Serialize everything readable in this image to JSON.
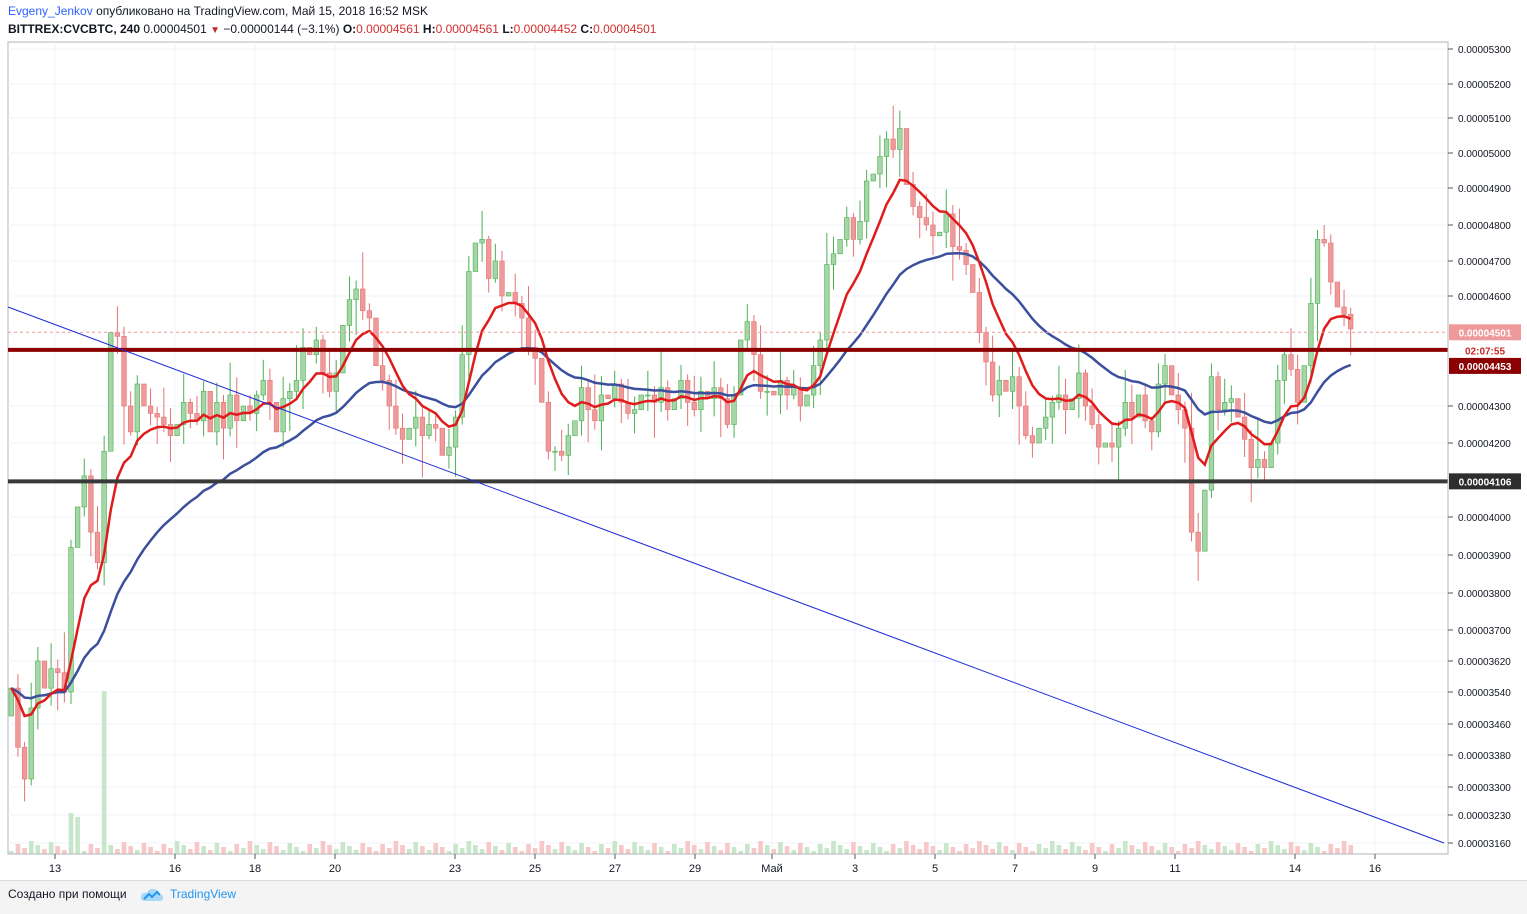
{
  "header": {
    "author": "Evgeny_Jenkov",
    "published": "опубликовано на TradingView.com, Май 15, 2018 16:52 MSK",
    "symbol": "BITTREX:CVCBTC, 240",
    "last": "0.00004501",
    "change_arrow": "▼",
    "change": "−0.00000144 (−3.1%)",
    "o_label": "O:",
    "o": "0.00004561",
    "h_label": "H:",
    "h": "0.00004561",
    "l_label": "L:",
    "l": "0.00004452",
    "c_label": "C:",
    "c": "0.00004501"
  },
  "footer": {
    "made_with": "Создано при помощи",
    "brand": "TradingView",
    "logo_icon": "tradingview-cloud-icon"
  },
  "colors": {
    "up": "#a5d6a7",
    "down": "#ef9a9a",
    "ma_fast": "#e01b1b",
    "ma_slow": "#3b4f9c",
    "trendline": "#1f2bd6",
    "resistance": "#8b0000",
    "support": "#3a3a3a",
    "last_price_line": "#ef9a9a"
  },
  "chart_data": {
    "type": "candlestick",
    "x_tick_labels": [
      "13",
      "16",
      "18",
      "20",
      "23",
      "25",
      "27",
      "29",
      "Май",
      "3",
      "5",
      "7",
      "9",
      "11",
      "14",
      "16"
    ],
    "y_tick_labels": [
      "0.00005300",
      "0.00005200",
      "0.00005100",
      "0.00005000",
      "0.00004900",
      "0.00004800",
      "0.00004700",
      "0.00004600",
      "0.00004300",
      "0.00004200",
      "0.00004000",
      "0.00003900",
      "0.00003800",
      "0.00003700",
      "0.00003620",
      "0.00003540",
      "0.00003460",
      "0.00003380",
      "0.00003300",
      "0.00003230",
      "0.00003160"
    ],
    "y_axis_note": "non-linear price scale as printed on the axis",
    "price_badges": {
      "last": "0.00004501",
      "countdown": "02:07:55",
      "resistance": "0.00004453",
      "support": "0.00004106"
    },
    "horizontal_lines": [
      {
        "kind": "resistance",
        "value": 4.453e-05
      },
      {
        "kind": "support",
        "value": 4.106e-05
      },
      {
        "kind": "last-price",
        "value": 4.501e-05
      }
    ],
    "trendline": {
      "start_price_approx": 4.57e-05,
      "direction": "down",
      "end_price_approx": 3.14e-05
    },
    "series": [
      {
        "kind": "candles",
        "close_approx": [
          3.55e-05,
          3.4e-05,
          3.32e-05,
          3.5e-05,
          3.62e-05,
          3.55e-05,
          3.6e-05,
          3.59e-05,
          3.54e-05,
          3.92e-05,
          4.03e-05,
          4.12e-05,
          3.96e-05,
          3.88e-05,
          4.18e-05,
          4.5e-05,
          4.49e-05,
          4.3e-05,
          4.23e-05,
          4.36e-05,
          4.3e-05,
          4.28e-05,
          4.27e-05,
          4.25e-05,
          4.22e-05,
          4.25e-05,
          4.31e-05,
          4.28e-05,
          4.26e-05,
          4.34e-05,
          4.23e-05,
          4.31e-05,
          4.24e-05,
          4.33e-05,
          4.26e-05,
          4.3e-05,
          4.28e-05,
          4.33e-05,
          4.37e-05,
          4.31e-05,
          4.23e-05,
          4.32e-05,
          4.34e-05,
          4.37e-05,
          4.46e-05,
          4.44e-05,
          4.48e-05,
          4.39e-05,
          4.34e-05,
          4.39e-05,
          4.52e-05,
          4.59e-05,
          4.62e-05,
          4.56e-05,
          4.54e-05,
          4.41e-05,
          4.37e-05,
          4.3e-05,
          4.24e-05,
          4.21e-05,
          4.24e-05,
          4.27e-05,
          4.22e-05,
          4.25e-05,
          4.24e-05,
          4.17e-05,
          4.19e-05,
          4.27e-05,
          4.44e-05,
          4.67e-05,
          4.75e-05,
          4.76e-05,
          4.65e-05,
          4.7e-05,
          4.6e-05,
          4.61e-05,
          4.58e-05,
          4.54e-05,
          4.46e-05,
          4.43e-05,
          4.31e-05,
          4.18e-05,
          4.18e-05,
          4.17e-05,
          4.22e-05,
          4.26e-05,
          4.35e-05,
          4.29e-05,
          4.26e-05,
          4.33e-05,
          4.32e-05,
          4.36e-05,
          4.31e-05,
          4.28e-05,
          4.29e-05,
          4.33e-05,
          4.33e-05,
          4.31e-05,
          4.35e-05,
          4.29e-05,
          4.32e-05,
          4.37e-05,
          4.31e-05,
          4.29e-05,
          4.34e-05,
          4.32e-05,
          4.35e-05,
          4.32e-05,
          4.25e-05,
          4.33e-05,
          4.48e-05,
          4.53e-05,
          4.44e-05,
          4.34e-05,
          4.34e-05,
          4.33e-05,
          4.37e-05,
          4.33e-05,
          4.35e-05,
          4.3e-05,
          4.33e-05,
          4.41e-05,
          4.48e-05,
          4.69e-05,
          4.72e-05,
          4.76e-05,
          4.82e-05,
          4.76e-05,
          4.81e-05,
          4.92e-05,
          4.94e-05,
          4.99e-05,
          5.04e-05,
          5.01e-05,
          5.07e-05,
          4.91e-05,
          4.85e-05,
          4.82e-05,
          4.8e-05,
          4.77e-05,
          4.78e-05,
          4.83e-05,
          4.74e-05,
          4.73e-05,
          4.69e-05,
          4.61e-05,
          4.5e-05,
          4.42e-05,
          4.33e-05,
          4.37e-05,
          4.34e-05,
          4.38e-05,
          4.3e-05,
          4.22e-05,
          4.2e-05,
          4.24e-05,
          4.27e-05,
          4.31e-05,
          4.33e-05,
          4.29e-05,
          4.32e-05,
          4.39e-05,
          4.3e-05,
          4.25e-05,
          4.19e-05,
          4.2e-05,
          4.19e-05,
          4.24e-05,
          4.31e-05,
          4.27e-05,
          4.33e-05,
          4.26e-05,
          4.23e-05,
          4.36e-05,
          4.41e-05,
          4.33e-05,
          4.29e-05,
          4.24e-05,
          3.96e-05,
          3.91e-05,
          4.08e-05,
          4.38e-05,
          4.29e-05,
          4.31e-05,
          4.32e-05,
          4.27e-05,
          4.21e-05,
          4.14e-05,
          4.16e-05,
          4.14e-05,
          4.2e-05,
          4.37e-05,
          4.44e-05,
          4.4e-05,
          4.31e-05,
          4.41e-05,
          4.58e-05,
          4.76e-05,
          4.75e-05,
          4.64e-05,
          4.57e-05,
          4.55e-05,
          4.51e-05
        ]
      },
      {
        "kind": "moving-average-fast",
        "legend": false
      },
      {
        "kind": "moving-average-slow",
        "legend": false
      },
      {
        "kind": "volume",
        "legend": false
      }
    ],
    "grid": true,
    "legend": "none"
  }
}
